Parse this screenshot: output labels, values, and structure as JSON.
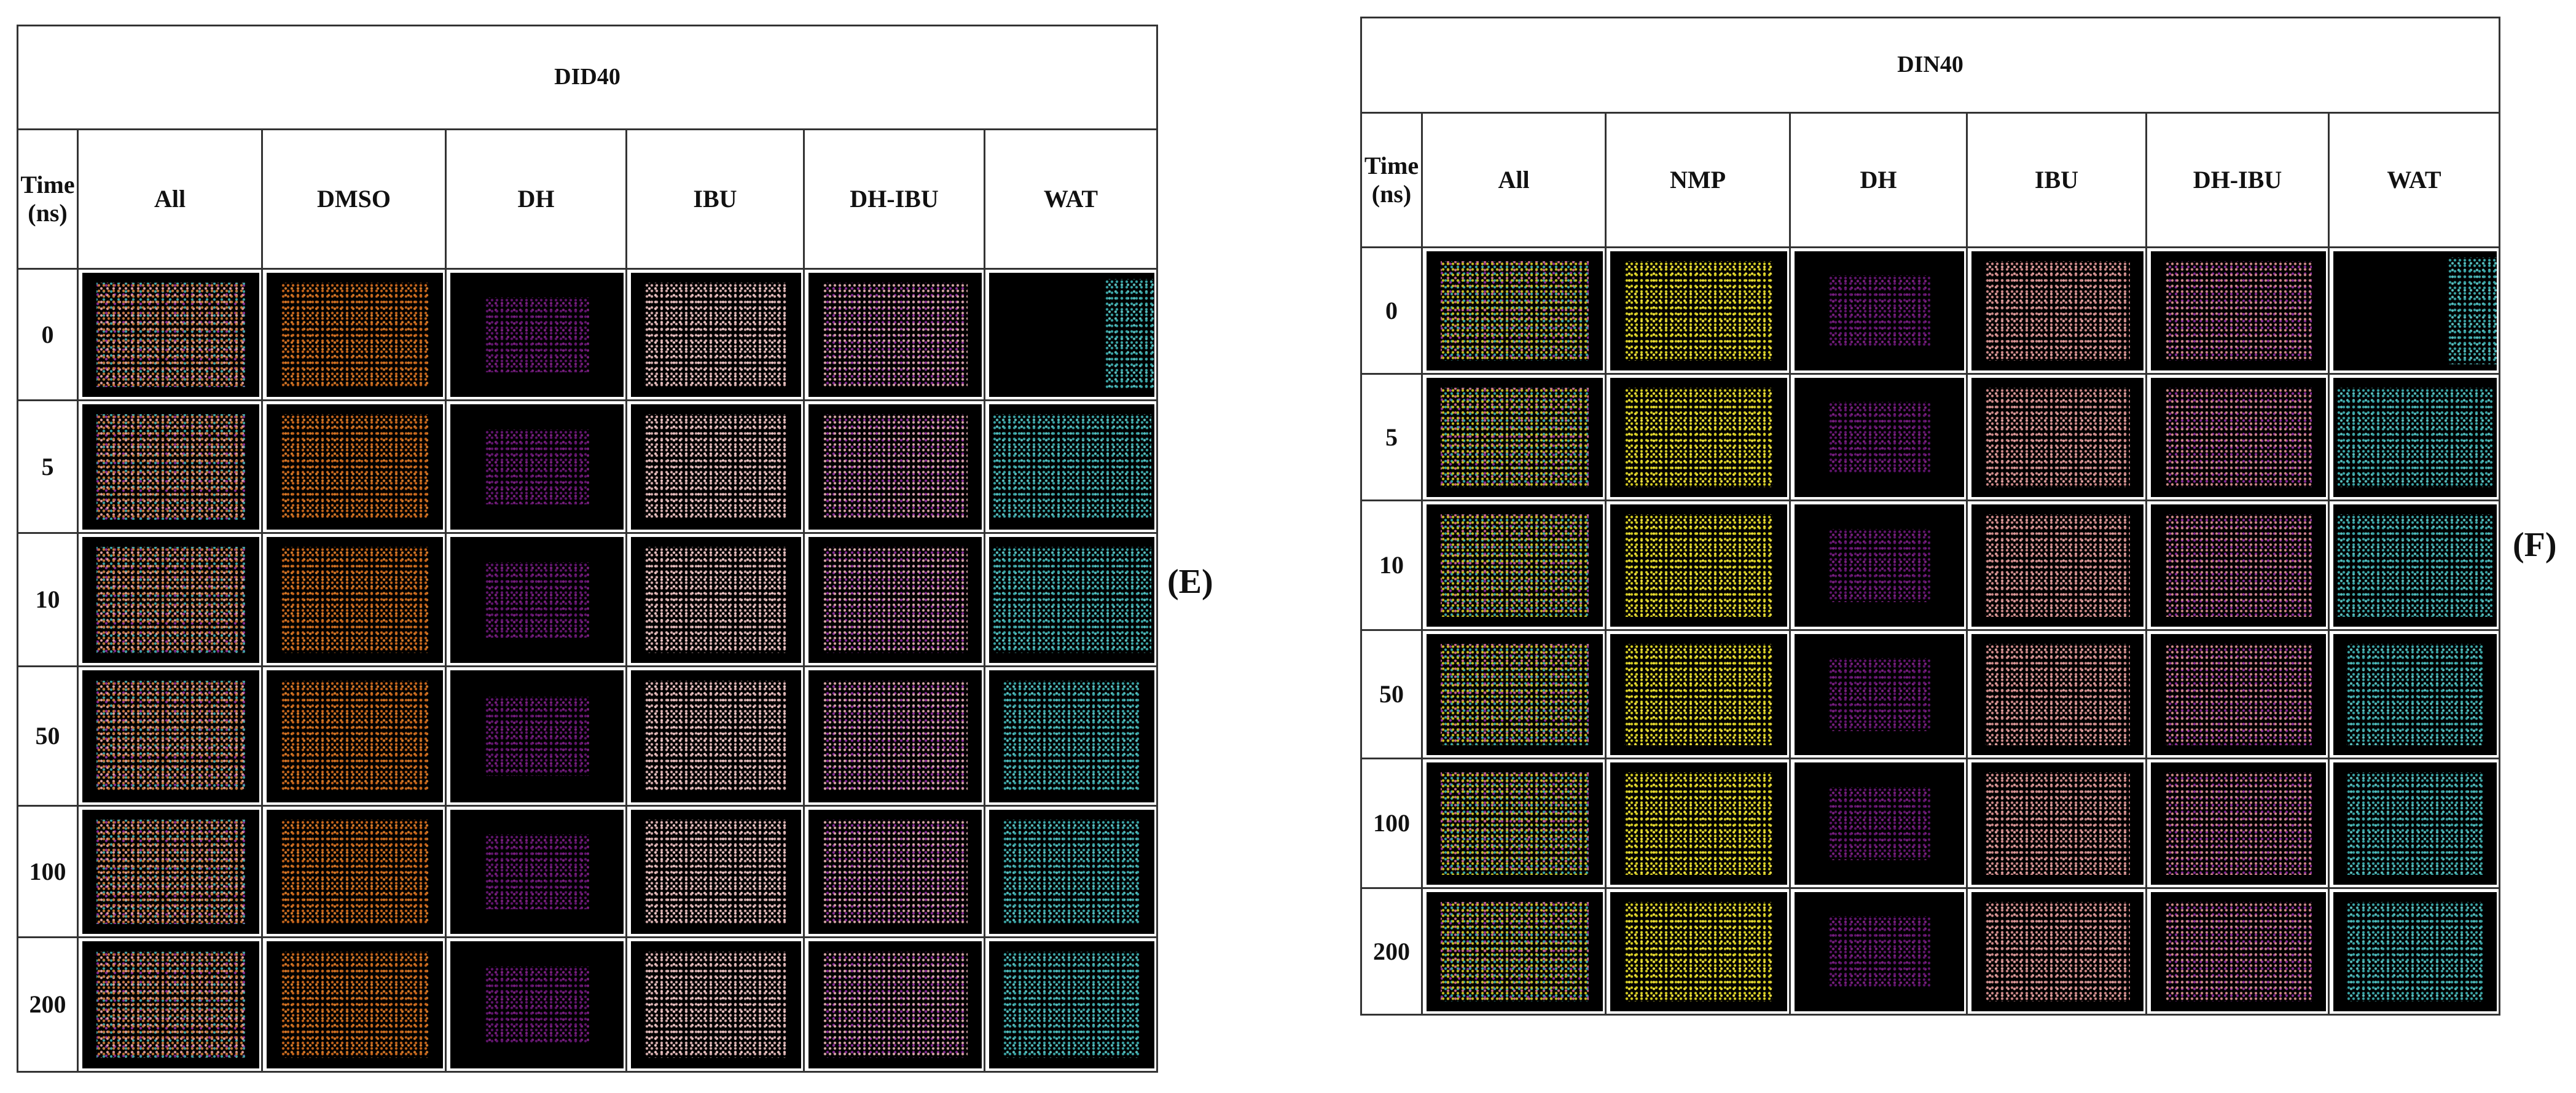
{
  "panels": [
    {
      "title": "DID40",
      "label": "(E)",
      "header": [
        "Time (ns)",
        "All",
        "DMSO",
        "DH",
        "IBU",
        "DH-IBU",
        "WAT"
      ],
      "rows": [
        "0",
        "5",
        "10",
        "50",
        "100",
        "200"
      ]
    },
    {
      "title": "DIN40",
      "label": "(F)",
      "header": [
        "Time (ns)",
        "All",
        "NMP",
        "DH",
        "IBU",
        "DH-IBU",
        "WAT"
      ],
      "rows": [
        "0",
        "5",
        "10",
        "50",
        "100",
        "200"
      ]
    }
  ]
}
